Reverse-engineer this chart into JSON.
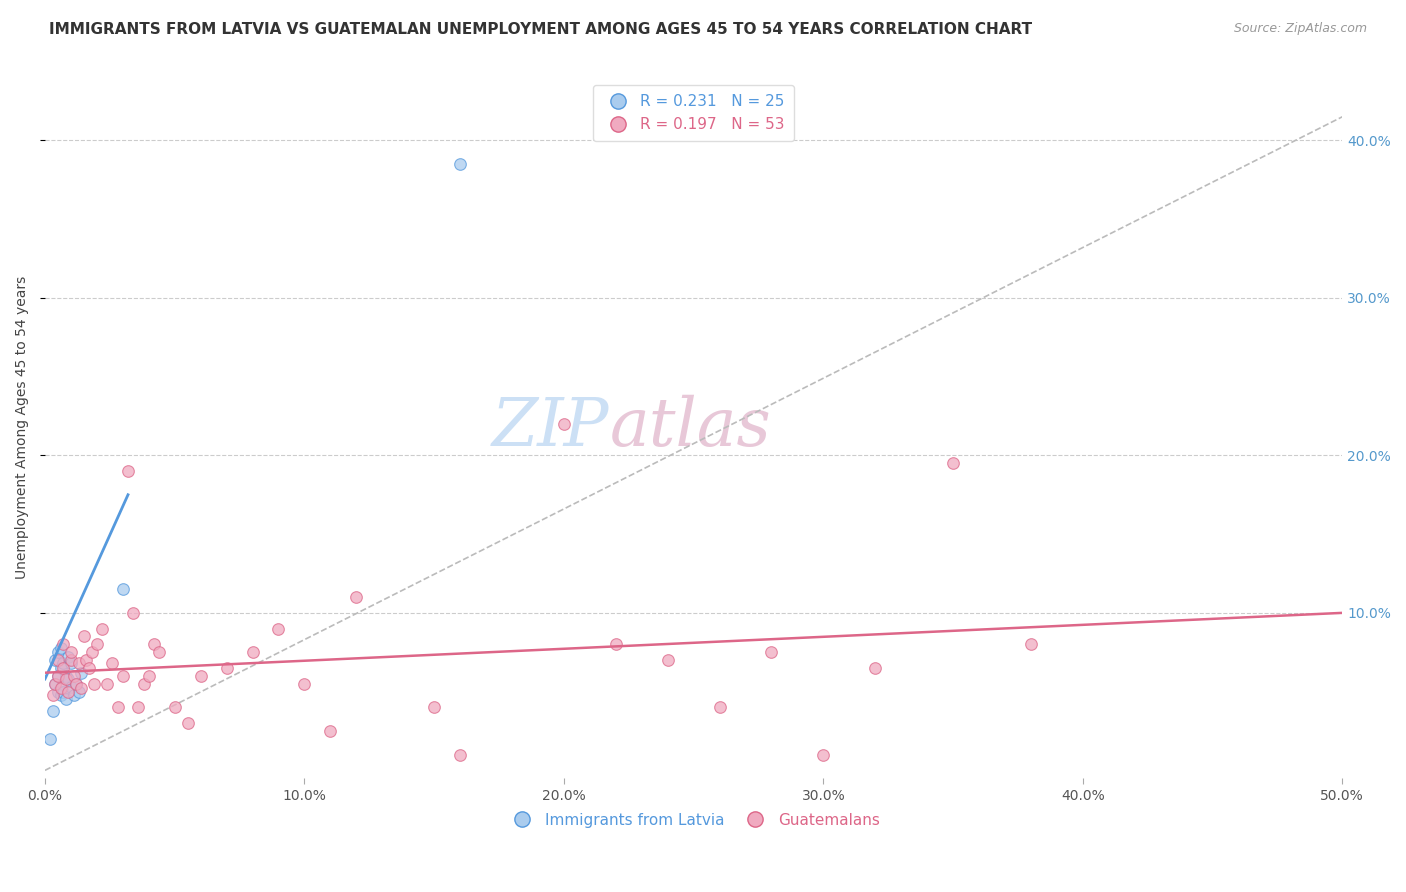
{
  "title": "IMMIGRANTS FROM LATVIA VS GUATEMALAN UNEMPLOYMENT AMONG AGES 45 TO 54 YEARS CORRELATION CHART",
  "source": "Source: ZipAtlas.com",
  "ylabel": "Unemployment Among Ages 45 to 54 years",
  "xlim": [
    0.0,
    0.5
  ],
  "ylim": [
    -0.005,
    0.44
  ],
  "xticks": [
    0.0,
    0.1,
    0.2,
    0.3,
    0.4,
    0.5
  ],
  "yticks_right": [
    0.1,
    0.2,
    0.3,
    0.4
  ],
  "ytick_labels_right": [
    "10.0%",
    "20.0%",
    "30.0%",
    "40.0%"
  ],
  "xtick_labels": [
    "0.0%",
    "10.0%",
    "20.0%",
    "30.0%",
    "40.0%",
    "50.0%"
  ],
  "grid_color": "#cccccc",
  "background_color": "#ffffff",
  "watermark_zip": "ZIP",
  "watermark_atlas": "atlas",
  "legend1_label": "R = 0.231   N = 25",
  "legend2_label": "R = 0.197   N = 53",
  "series1_color": "#aaccee",
  "series2_color": "#f0aac0",
  "trendline1_color": "#5599dd",
  "trendline2_color": "#dd6688",
  "trendline_dashed_color": "#bbbbbb",
  "scatter1_x": [
    0.002,
    0.003,
    0.004,
    0.004,
    0.005,
    0.005,
    0.005,
    0.006,
    0.006,
    0.006,
    0.007,
    0.007,
    0.007,
    0.008,
    0.008,
    0.009,
    0.009,
    0.01,
    0.01,
    0.011,
    0.012,
    0.013,
    0.014,
    0.03,
    0.16
  ],
  "scatter1_y": [
    0.02,
    0.038,
    0.055,
    0.07,
    0.05,
    0.06,
    0.075,
    0.048,
    0.065,
    0.078,
    0.055,
    0.068,
    0.05,
    0.06,
    0.045,
    0.058,
    0.072,
    0.053,
    0.068,
    0.048,
    0.055,
    0.05,
    0.062,
    0.115,
    0.385
  ],
  "scatter2_x": [
    0.003,
    0.004,
    0.005,
    0.005,
    0.006,
    0.007,
    0.007,
    0.008,
    0.009,
    0.01,
    0.01,
    0.011,
    0.012,
    0.013,
    0.014,
    0.015,
    0.016,
    0.017,
    0.018,
    0.019,
    0.02,
    0.022,
    0.024,
    0.026,
    0.028,
    0.03,
    0.032,
    0.034,
    0.036,
    0.038,
    0.04,
    0.042,
    0.044,
    0.05,
    0.055,
    0.06,
    0.07,
    0.08,
    0.09,
    0.1,
    0.11,
    0.12,
    0.15,
    0.16,
    0.2,
    0.22,
    0.24,
    0.26,
    0.28,
    0.3,
    0.32,
    0.35,
    0.38
  ],
  "scatter2_y": [
    0.048,
    0.055,
    0.06,
    0.07,
    0.052,
    0.065,
    0.08,
    0.058,
    0.05,
    0.07,
    0.075,
    0.06,
    0.055,
    0.068,
    0.052,
    0.085,
    0.07,
    0.065,
    0.075,
    0.055,
    0.08,
    0.09,
    0.055,
    0.068,
    0.04,
    0.06,
    0.19,
    0.1,
    0.04,
    0.055,
    0.06,
    0.08,
    0.075,
    0.04,
    0.03,
    0.06,
    0.065,
    0.075,
    0.09,
    0.055,
    0.025,
    0.11,
    0.04,
    0.01,
    0.22,
    0.08,
    0.07,
    0.04,
    0.075,
    0.01,
    0.065,
    0.195,
    0.08
  ],
  "trendline1_x0": 0.0,
  "trendline1_y0": 0.058,
  "trendline1_x1": 0.032,
  "trendline1_y1": 0.175,
  "trendline2_x0": 0.0,
  "trendline2_y0": 0.062,
  "trendline2_x1": 0.5,
  "trendline2_y1": 0.1,
  "trendline_dash_x0": 0.0,
  "trendline_dash_y0": 0.0,
  "trendline_dash_x1": 0.5,
  "trendline_dash_y1": 0.415,
  "title_fontsize": 11,
  "source_fontsize": 9,
  "label_fontsize": 10,
  "tick_fontsize": 10,
  "legend_fontsize": 11,
  "watermark_fontsize": 48,
  "watermark_color_zip": "#cce0f5",
  "watermark_color_atlas": "#e8c8d8",
  "marker_size": 70,
  "marker_alpha": 0.75
}
